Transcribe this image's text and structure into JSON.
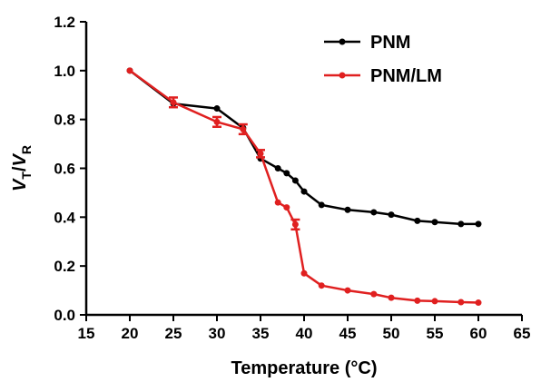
{
  "chart_data": {
    "type": "line",
    "xlabel": "Temperature (°C)",
    "ylabel_main": "V",
    "ylabel_sub1": "T",
    "ylabel_sep": "/",
    "ylabel_sub2": "R",
    "xlim": [
      15,
      65
    ],
    "ylim": [
      0.0,
      1.2
    ],
    "x_ticks": [
      15,
      20,
      25,
      30,
      35,
      40,
      45,
      50,
      55,
      60,
      65
    ],
    "x_tick_labels": [
      "15",
      "20",
      "25",
      "30",
      "35",
      "40",
      "45",
      "50",
      "55",
      "60",
      "65"
    ],
    "y_ticks": [
      0.0,
      0.2,
      0.4,
      0.6,
      0.8,
      1.0,
      1.2
    ],
    "y_tick_labels": [
      "0.0",
      "0.2",
      "0.4",
      "0.6",
      "0.8",
      "1.0",
      "1.2"
    ],
    "grid": false,
    "legend_position": "top-right",
    "series": [
      {
        "name": "PNM",
        "color": "#000000",
        "x": [
          20,
          25,
          30,
          33,
          35,
          37,
          38,
          39,
          40,
          42,
          45,
          48,
          50,
          53,
          55,
          58,
          60
        ],
        "y": [
          1.0,
          0.865,
          0.845,
          0.765,
          0.64,
          0.6,
          0.58,
          0.55,
          0.505,
          0.45,
          0.43,
          0.42,
          0.41,
          0.385,
          0.38,
          0.372,
          0.372
        ],
        "err": [
          0,
          0,
          0,
          0,
          0,
          0,
          0,
          0,
          0,
          0,
          0,
          0,
          0,
          0,
          0,
          0,
          0
        ]
      },
      {
        "name": "PNM/LM",
        "color": "#e02020",
        "x": [
          20,
          25,
          30,
          33,
          35,
          37,
          38,
          39,
          40,
          42,
          45,
          48,
          50,
          53,
          55,
          58,
          60
        ],
        "y": [
          1.0,
          0.87,
          0.79,
          0.76,
          0.66,
          0.46,
          0.44,
          0.37,
          0.17,
          0.12,
          0.1,
          0.085,
          0.07,
          0.058,
          0.056,
          0.052,
          0.05
        ],
        "err": [
          0,
          0.02,
          0.02,
          0.02,
          0.015,
          0,
          0,
          0.02,
          0,
          0,
          0,
          0,
          0,
          0,
          0,
          0,
          0
        ]
      }
    ]
  }
}
